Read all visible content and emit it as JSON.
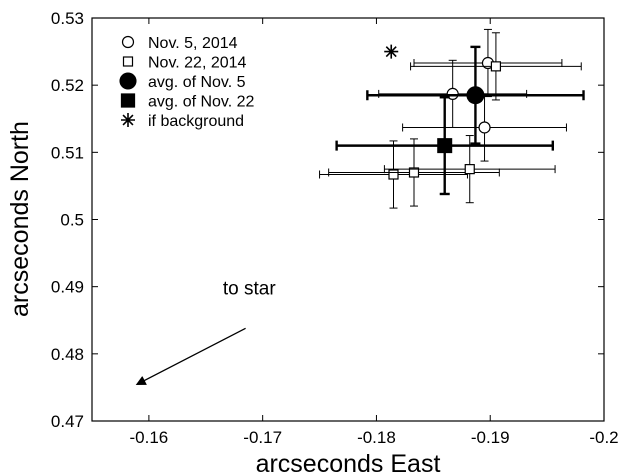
{
  "chart_data": {
    "type": "scatter",
    "title": "",
    "xlabel": "arcseconds East",
    "ylabel": "arcseconds North",
    "xlim": [
      -0.155,
      -0.2
    ],
    "ylim": [
      0.47,
      0.53
    ],
    "x_ticks": [
      -0.16,
      -0.17,
      -0.18,
      -0.19,
      -0.2
    ],
    "y_ticks": [
      0.47,
      0.48,
      0.49,
      0.5,
      0.51,
      0.52,
      0.53
    ],
    "x_tick_labels": [
      "-0.16",
      "-0.17",
      "-0.18",
      "-0.19",
      "-0.2"
    ],
    "y_tick_labels": [
      "0.47",
      "0.48",
      "0.49",
      "0.5",
      "0.51",
      "0.52",
      "0.53"
    ],
    "grid": false,
    "legend_position": "top-left",
    "series": [
      {
        "name": "Nov. 5, 2014",
        "marker": "open-circle",
        "points": [
          {
            "x": -0.1867,
            "y": 0.5187,
            "xerr": 0.0065,
            "yerr": 0.005
          },
          {
            "x": -0.1898,
            "y": 0.5233,
            "xerr": 0.0065,
            "yerr": 0.005
          },
          {
            "x": -0.1895,
            "y": 0.5137,
            "xerr": 0.0072,
            "yerr": 0.005
          }
        ]
      },
      {
        "name": "Nov. 22, 2014",
        "marker": "open-square",
        "points": [
          {
            "x": -0.1905,
            "y": 0.5228,
            "xerr": 0.0075,
            "yerr": 0.005
          },
          {
            "x": -0.1815,
            "y": 0.5067,
            "xerr": 0.0065,
            "yerr": 0.005
          },
          {
            "x": -0.1833,
            "y": 0.507,
            "xerr": 0.0075,
            "yerr": 0.005
          },
          {
            "x": -0.1882,
            "y": 0.5075,
            "xerr": 0.0075,
            "yerr": 0.005
          }
        ]
      },
      {
        "name": "avg. of Nov. 5",
        "marker": "filled-circle",
        "points": [
          {
            "x": -0.1887,
            "y": 0.5185,
            "xerr": 0.0095,
            "yerr": 0.0072
          }
        ]
      },
      {
        "name": "avg. of Nov. 22",
        "marker": "filled-square",
        "points": [
          {
            "x": -0.186,
            "y": 0.511,
            "xerr": 0.0095,
            "yerr": 0.0072
          }
        ]
      },
      {
        "name": "if background",
        "marker": "asterisk",
        "points": [
          {
            "x": -0.1813,
            "y": 0.525
          }
        ]
      }
    ],
    "annotations": [
      {
        "text": "to star",
        "x": -0.1665,
        "y": 0.4888,
        "arrow_from": [
          -0.1685,
          0.4838
        ],
        "arrow_to": [
          -0.159,
          0.4755
        ]
      }
    ]
  }
}
